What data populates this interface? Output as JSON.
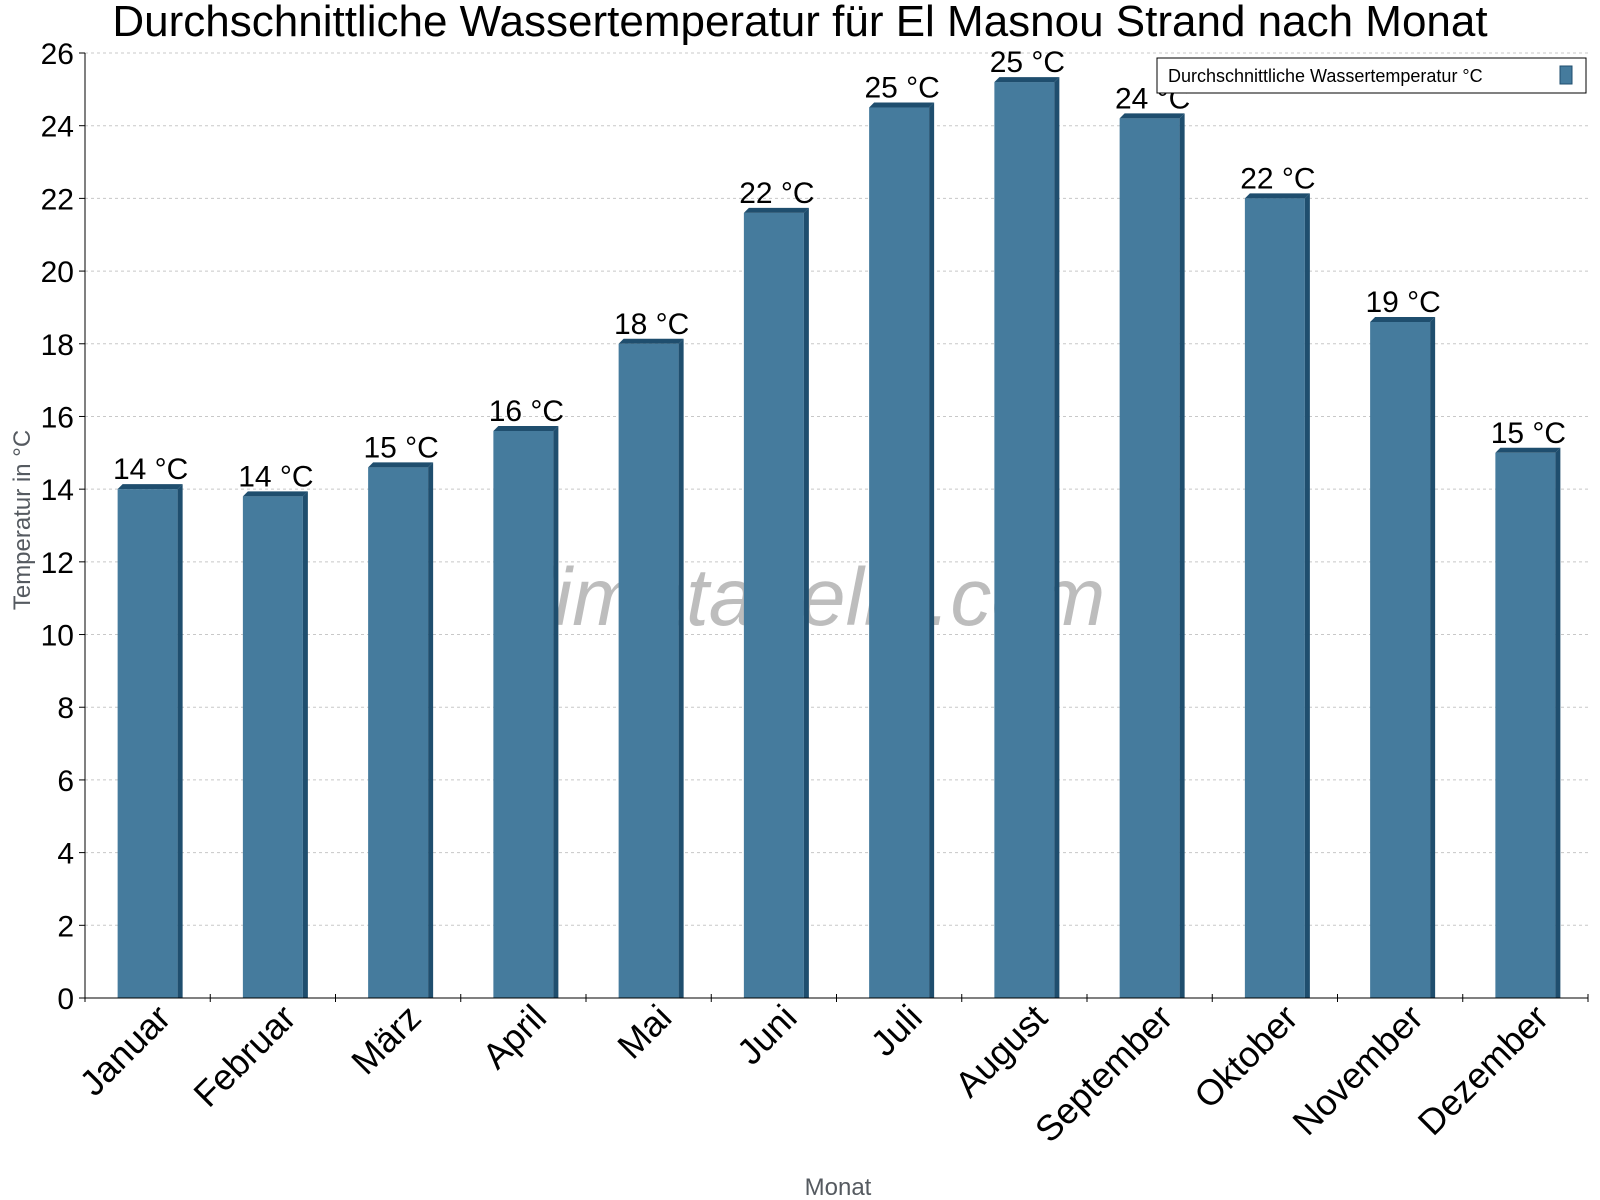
{
  "chart_data": {
    "type": "bar",
    "title": "Durchschnittliche Wassertemperatur für El Masnou Strand nach Monat",
    "xlabel": "Monat",
    "ylabel": "Temperatur in °C",
    "ylim": [
      0,
      26
    ],
    "ytick_step": 2,
    "grid": true,
    "legend_position": "top-right",
    "categories": [
      "Januar",
      "Februar",
      "März",
      "April",
      "Mai",
      "Juni",
      "Juli",
      "August",
      "September",
      "Oktober",
      "November",
      "Dezember"
    ],
    "series": [
      {
        "name": "Durchschnittliche Wassertemperatur °C",
        "values": [
          14.0,
          13.8,
          14.6,
          15.6,
          18.0,
          21.6,
          24.5,
          25.2,
          24.2,
          22.0,
          18.6,
          15.0
        ],
        "labels": [
          "14 °C",
          "14 °C",
          "15 °C",
          "16 °C",
          "18 °C",
          "22 °C",
          "25 °C",
          "25 °C",
          "24 °C",
          "22 °C",
          "19 °C",
          "15 °C"
        ],
        "color": "#457b9d",
        "edge_color": "#1f4e6e"
      }
    ]
  },
  "watermark": "klimatabelle.com"
}
